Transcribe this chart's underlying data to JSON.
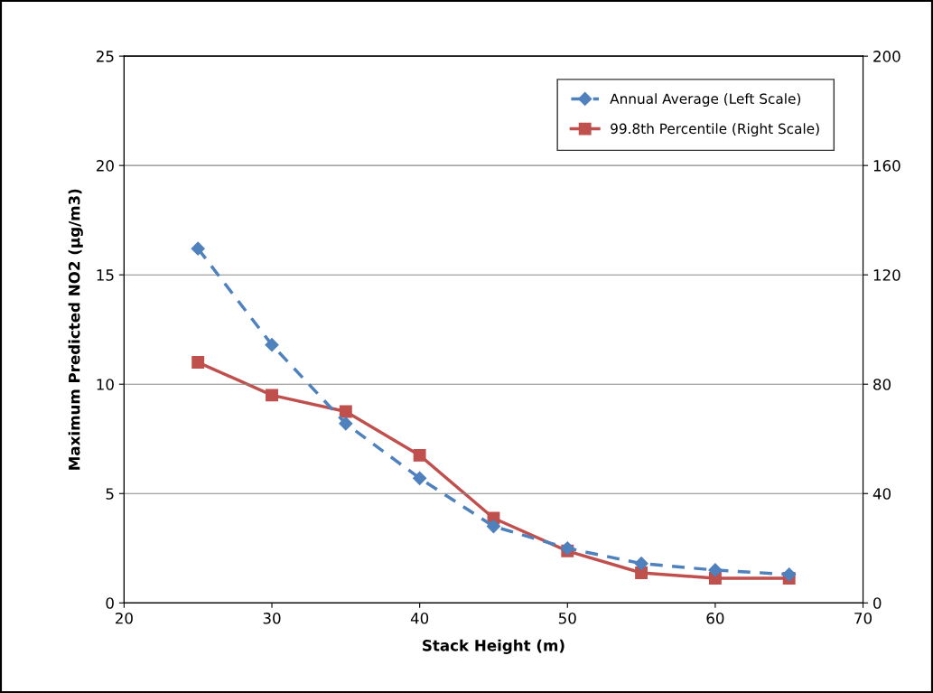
{
  "chart_data": {
    "type": "line",
    "xlabel": "Stack Height (m)",
    "ylabel": "Maximum Predicted NO2 (µg/m3)",
    "x": [
      25,
      30,
      35,
      40,
      45,
      50,
      55,
      60,
      65
    ],
    "series": [
      {
        "name": "Annual Average (Left Scale)",
        "color": "#4f81bd",
        "marker": "diamond",
        "line_style": "dashed",
        "values": [
          16.2,
          11.8,
          8.2,
          5.7,
          3.5,
          2.5,
          1.8,
          1.5,
          1.3
        ]
      },
      {
        "name": "99.8th Percentile (Right Scale)",
        "color": "#c0504d",
        "marker": "square",
        "line_style": "solid",
        "axis": "y2",
        "values": [
          88,
          76,
          70,
          54,
          31,
          19,
          11,
          9,
          9
        ]
      }
    ],
    "xlim": [
      20,
      70
    ],
    "xticks": [
      20,
      30,
      40,
      50,
      60,
      70
    ],
    "ylim": [
      0,
      25
    ],
    "yticks": [
      0,
      5,
      10,
      15,
      20,
      25
    ],
    "y2lim": [
      0,
      200
    ],
    "y2ticks": [
      0,
      40,
      80,
      120,
      160,
      200
    ],
    "grid": "y",
    "legend": "top right"
  }
}
